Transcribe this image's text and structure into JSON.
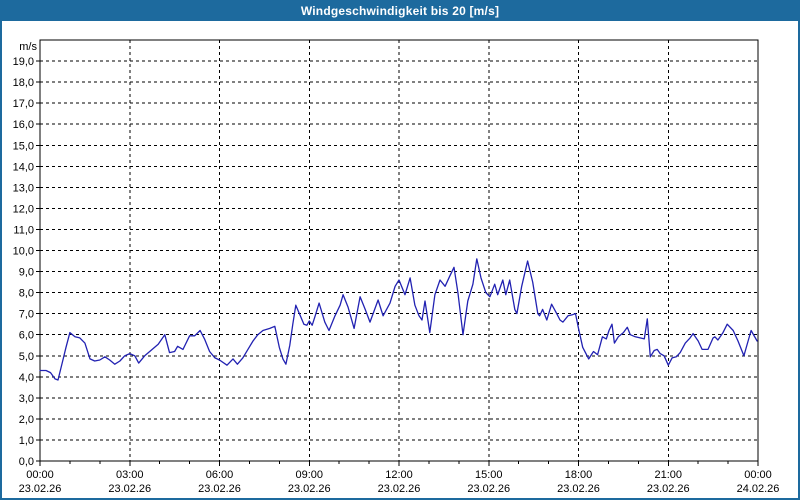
{
  "header": {
    "title": "Windgeschwindigkeit bis 20 [m/s]"
  },
  "colors": {
    "header_bg": "#1d6a9e",
    "page_border": "#1d6a9e",
    "plot_bg": "#ffffff",
    "grid": "#000000",
    "text": "#000000",
    "line": "#2222b2"
  },
  "chart_data": {
    "type": "line",
    "title": "Windgeschwindigkeit bis 20 [m/s]",
    "ylabel": "m/s",
    "ylim": [
      0,
      20
    ],
    "xlim_hours": [
      0,
      24
    ],
    "legend_position": "none",
    "grid": "dashed black; horizontal every 1 m/s, vertical every 3 h",
    "minor_x_tick_every_hours": 1,
    "y_tick_labels": [
      "0,0",
      "1,0",
      "2,0",
      "3,0",
      "4,0",
      "5,0",
      "6,0",
      "7,0",
      "8,0",
      "9,0",
      "10,0",
      "11,0",
      "12,0",
      "13,0",
      "14,0",
      "15,0",
      "16,0",
      "17,0",
      "18,0",
      "19,0"
    ],
    "x_ticks": [
      {
        "hour": 0,
        "time": "00:00",
        "date": "23.02.26"
      },
      {
        "hour": 3,
        "time": "03:00",
        "date": "23.02.26"
      },
      {
        "hour": 6,
        "time": "06:00",
        "date": "23.02.26"
      },
      {
        "hour": 9,
        "time": "09:00",
        "date": "23.02.26"
      },
      {
        "hour": 12,
        "time": "12:00",
        "date": "23.02.26"
      },
      {
        "hour": 15,
        "time": "15:00",
        "date": "23.02.26"
      },
      {
        "hour": 18,
        "time": "18:00",
        "date": "23.02.26"
      },
      {
        "hour": 21,
        "time": "21:00",
        "date": "23.02.26"
      },
      {
        "hour": 24,
        "time": "00:00",
        "date": "24.02.26"
      }
    ],
    "series": [
      {
        "name": "Windgeschwindigkeit",
        "unit": "m/s",
        "points": [
          [
            0.0,
            4.3
          ],
          [
            0.2,
            4.3
          ],
          [
            0.35,
            4.2
          ],
          [
            0.5,
            3.9
          ],
          [
            0.6,
            3.85
          ],
          [
            0.75,
            4.7
          ],
          [
            0.87,
            5.4
          ],
          [
            1.0,
            6.1
          ],
          [
            1.17,
            5.9
          ],
          [
            1.33,
            5.85
          ],
          [
            1.5,
            5.6
          ],
          [
            1.67,
            4.85
          ],
          [
            1.83,
            4.75
          ],
          [
            2.0,
            4.8
          ],
          [
            2.17,
            4.95
          ],
          [
            2.33,
            4.8
          ],
          [
            2.5,
            4.6
          ],
          [
            2.67,
            4.75
          ],
          [
            2.83,
            5.0
          ],
          [
            3.0,
            5.1
          ],
          [
            3.17,
            5.0
          ],
          [
            3.3,
            4.65
          ],
          [
            3.5,
            5.0
          ],
          [
            3.75,
            5.3
          ],
          [
            3.95,
            5.55
          ],
          [
            4.17,
            6.0
          ],
          [
            4.33,
            5.15
          ],
          [
            4.5,
            5.2
          ],
          [
            4.6,
            5.45
          ],
          [
            4.78,
            5.3
          ],
          [
            5.0,
            5.95
          ],
          [
            5.17,
            5.95
          ],
          [
            5.35,
            6.2
          ],
          [
            5.5,
            5.8
          ],
          [
            5.67,
            5.2
          ],
          [
            5.85,
            4.9
          ],
          [
            6.0,
            4.8
          ],
          [
            6.25,
            4.55
          ],
          [
            6.45,
            4.85
          ],
          [
            6.6,
            4.6
          ],
          [
            6.78,
            4.9
          ],
          [
            6.95,
            5.3
          ],
          [
            7.12,
            5.7
          ],
          [
            7.28,
            6.0
          ],
          [
            7.45,
            6.2
          ],
          [
            7.68,
            6.3
          ],
          [
            7.85,
            6.4
          ],
          [
            8.0,
            5.4
          ],
          [
            8.12,
            4.85
          ],
          [
            8.22,
            4.6
          ],
          [
            8.35,
            5.5
          ],
          [
            8.45,
            6.5
          ],
          [
            8.55,
            7.4
          ],
          [
            8.7,
            6.9
          ],
          [
            8.82,
            6.5
          ],
          [
            8.92,
            6.45
          ],
          [
            9.0,
            6.65
          ],
          [
            9.1,
            6.45
          ],
          [
            9.2,
            6.9
          ],
          [
            9.33,
            7.5
          ],
          [
            9.52,
            6.6
          ],
          [
            9.66,
            6.2
          ],
          [
            9.86,
            6.9
          ],
          [
            10.03,
            7.4
          ],
          [
            10.13,
            7.9
          ],
          [
            10.3,
            7.3
          ],
          [
            10.5,
            6.3
          ],
          [
            10.7,
            7.8
          ],
          [
            10.87,
            7.2
          ],
          [
            11.03,
            6.6
          ],
          [
            11.3,
            7.65
          ],
          [
            11.47,
            6.9
          ],
          [
            11.7,
            7.5
          ],
          [
            11.87,
            8.3
          ],
          [
            12.0,
            8.6
          ],
          [
            12.2,
            7.9
          ],
          [
            12.37,
            8.7
          ],
          [
            12.53,
            7.4
          ],
          [
            12.67,
            6.9
          ],
          [
            12.77,
            6.7
          ],
          [
            12.87,
            7.6
          ],
          [
            13.03,
            6.1
          ],
          [
            13.2,
            7.9
          ],
          [
            13.37,
            8.6
          ],
          [
            13.54,
            8.3
          ],
          [
            13.7,
            8.8
          ],
          [
            13.84,
            9.2
          ],
          [
            13.97,
            8.0
          ],
          [
            14.14,
            6.0
          ],
          [
            14.3,
            7.6
          ],
          [
            14.47,
            8.4
          ],
          [
            14.6,
            9.6
          ],
          [
            14.74,
            8.7
          ],
          [
            14.9,
            8.0
          ],
          [
            15.04,
            7.8
          ],
          [
            15.2,
            8.4
          ],
          [
            15.3,
            7.9
          ],
          [
            15.47,
            8.6
          ],
          [
            15.57,
            7.9
          ],
          [
            15.7,
            8.6
          ],
          [
            15.87,
            7.2
          ],
          [
            15.94,
            7.0
          ],
          [
            16.1,
            8.3
          ],
          [
            16.3,
            9.5
          ],
          [
            16.47,
            8.5
          ],
          [
            16.64,
            7.0
          ],
          [
            16.7,
            6.9
          ],
          [
            16.8,
            7.2
          ],
          [
            16.94,
            6.7
          ],
          [
            17.1,
            7.45
          ],
          [
            17.27,
            7.0
          ],
          [
            17.38,
            6.7
          ],
          [
            17.48,
            6.6
          ],
          [
            17.65,
            6.9
          ],
          [
            17.8,
            6.95
          ],
          [
            17.9,
            7.0
          ],
          [
            18.0,
            6.3
          ],
          [
            18.14,
            5.4
          ],
          [
            18.34,
            4.85
          ],
          [
            18.5,
            5.2
          ],
          [
            18.64,
            5.05
          ],
          [
            18.8,
            5.9
          ],
          [
            18.93,
            5.8
          ],
          [
            19.02,
            6.2
          ],
          [
            19.12,
            6.5
          ],
          [
            19.2,
            5.6
          ],
          [
            19.33,
            5.9
          ],
          [
            19.5,
            6.1
          ],
          [
            19.63,
            6.35
          ],
          [
            19.73,
            6.0
          ],
          [
            19.9,
            5.9
          ],
          [
            20.06,
            5.85
          ],
          [
            20.2,
            5.8
          ],
          [
            20.3,
            6.75
          ],
          [
            20.4,
            4.95
          ],
          [
            20.53,
            5.25
          ],
          [
            20.63,
            5.3
          ],
          [
            20.73,
            5.1
          ],
          [
            20.86,
            5.0
          ],
          [
            21.0,
            4.55
          ],
          [
            21.13,
            4.9
          ],
          [
            21.27,
            4.95
          ],
          [
            21.4,
            5.15
          ],
          [
            21.57,
            5.6
          ],
          [
            21.73,
            5.85
          ],
          [
            21.83,
            6.05
          ],
          [
            22.0,
            5.7
          ],
          [
            22.13,
            5.3
          ],
          [
            22.33,
            5.3
          ],
          [
            22.5,
            5.85
          ],
          [
            22.56,
            5.9
          ],
          [
            22.66,
            5.75
          ],
          [
            22.83,
            6.1
          ],
          [
            22.97,
            6.5
          ],
          [
            23.17,
            6.2
          ],
          [
            23.33,
            5.7
          ],
          [
            23.53,
            5.0
          ],
          [
            23.67,
            5.7
          ],
          [
            23.77,
            6.2
          ],
          [
            23.97,
            5.7
          ]
        ]
      }
    ]
  }
}
